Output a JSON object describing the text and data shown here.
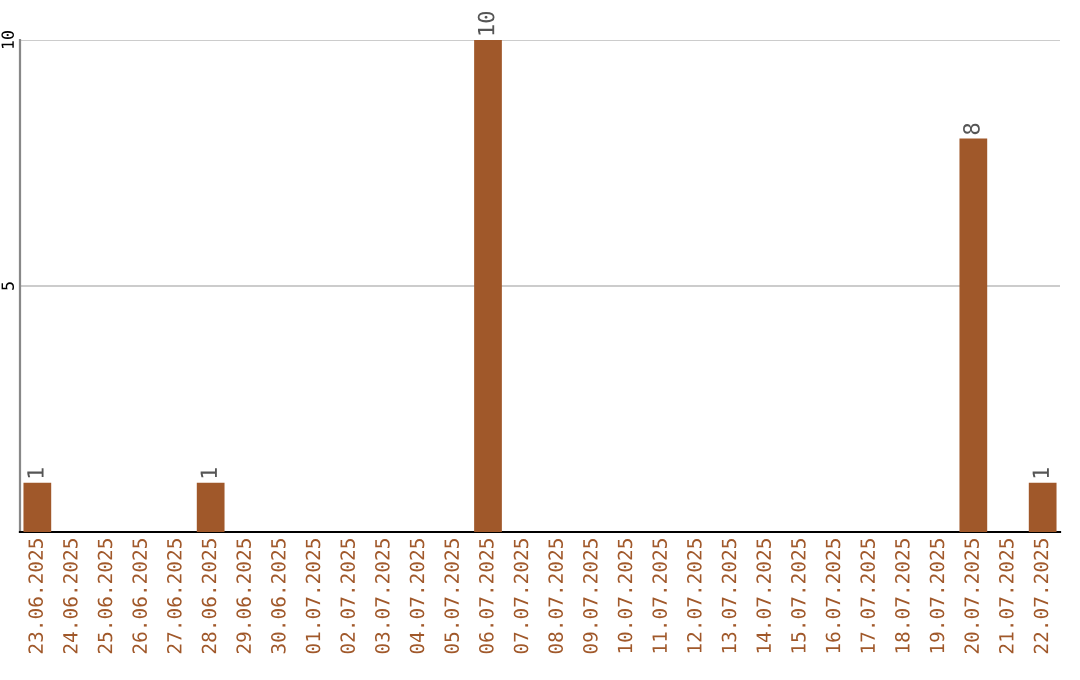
{
  "chart_data": {
    "type": "bar",
    "categories": [
      "23.06.2025",
      "24.06.2025",
      "25.06.2025",
      "26.06.2025",
      "27.06.2025",
      "28.06.2025",
      "29.06.2025",
      "30.06.2025",
      "01.07.2025",
      "02.07.2025",
      "03.07.2025",
      "04.07.2025",
      "05.07.2025",
      "06.07.2025",
      "07.07.2025",
      "08.07.2025",
      "09.07.2025",
      "10.07.2025",
      "11.07.2025",
      "12.07.2025",
      "13.07.2025",
      "14.07.2025",
      "15.07.2025",
      "16.07.2025",
      "17.07.2025",
      "18.07.2025",
      "19.07.2025",
      "20.07.2025",
      "21.07.2025",
      "22.07.2025"
    ],
    "values": [
      1,
      0,
      0,
      0,
      0,
      1,
      0,
      0,
      0,
      0,
      0,
      0,
      0,
      10,
      0,
      0,
      0,
      0,
      0,
      0,
      0,
      0,
      0,
      0,
      0,
      0,
      0,
      8,
      0,
      1
    ],
    "value_labels": [
      "1",
      null,
      null,
      null,
      null,
      "1",
      null,
      null,
      null,
      null,
      null,
      null,
      null,
      "10",
      null,
      null,
      null,
      null,
      null,
      null,
      null,
      null,
      null,
      null,
      null,
      null,
      null,
      "8",
      null,
      "1"
    ],
    "color": "#a0582a",
    "ylim": [
      0,
      10
    ],
    "yticks": [
      {
        "value": 0,
        "label": null
      },
      5,
      10
    ],
    "grid": "y"
  }
}
